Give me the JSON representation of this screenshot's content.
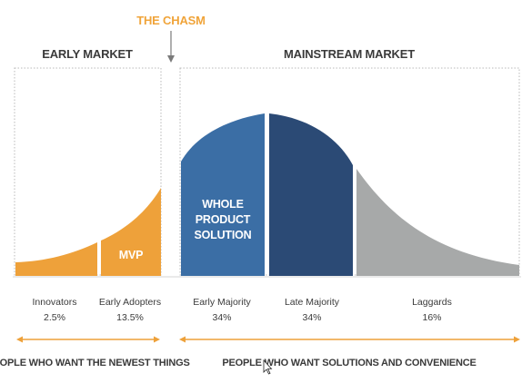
{
  "chasm": {
    "label": "THE CHASM",
    "color": "#f0a43a"
  },
  "markets": {
    "early": "EARLY MARKET",
    "mainstream": "MAINSTREAM MARKET"
  },
  "segments": [
    {
      "name": "Innovators",
      "pct": "2.5%",
      "color": "#eea13a"
    },
    {
      "name": "Early Adopters",
      "pct": "13.5%",
      "color": "#eea13a",
      "overlay": "MVP"
    },
    {
      "name": "Early Majority",
      "pct": "34%",
      "color": "#3b6ea5",
      "overlay": [
        "WHOLE",
        "PRODUCT",
        "SOLUTION"
      ]
    },
    {
      "name": "Late Majority",
      "pct": "34%",
      "color": "#2b4a75"
    },
    {
      "name": "Laggards",
      "pct": "16%",
      "color": "#a7a9a9"
    }
  ],
  "footer": {
    "left": "PEOPLE WHO WANT THE NEWEST THINGS",
    "right": "PEOPLE WHO WANT SOLUTIONS AND CONVENIENCE"
  },
  "colors": {
    "orange": "#eea13a",
    "blue": "#3b6ea5",
    "navy": "#2b4a75",
    "gray": "#a7a9a9",
    "text": "#3a3a3a"
  }
}
